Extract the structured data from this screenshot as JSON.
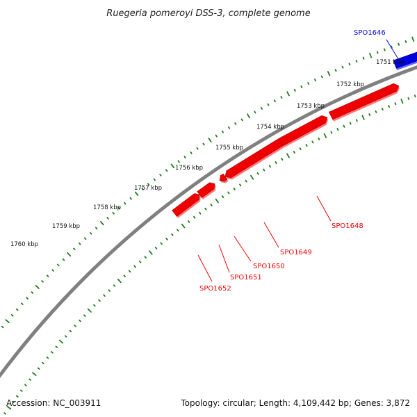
{
  "title": "Ruegeria pomeroyi DSS-3, complete genome",
  "footer": {
    "accession": "Accession: NC_003911",
    "summary": "Topology: circular; Length: 4,109,442 bp; Genes: 3,872"
  },
  "colors": {
    "backbone": "#808080",
    "ticks": "#1a7a1a",
    "forward_gene": "#0000dd",
    "reverse_gene": "#ee0000"
  },
  "tick_labels": [
    "1751 kbp",
    "1752 kbp",
    "1753 kbp",
    "1754 kbp",
    "1755 kbp",
    "1756 kbp",
    "1757 kbp",
    "1758 kbp",
    "1759 kbp",
    "1760 kbp"
  ],
  "genes": [
    {
      "name": "SPO1646",
      "strand": "forward"
    },
    {
      "name": "SPO1648",
      "strand": "reverse"
    },
    {
      "name": "SPO1649",
      "strand": "reverse"
    },
    {
      "name": "SPO1650",
      "strand": "reverse"
    },
    {
      "name": "SPO1651",
      "strand": "reverse"
    },
    {
      "name": "SPO1652",
      "strand": "reverse"
    }
  ]
}
